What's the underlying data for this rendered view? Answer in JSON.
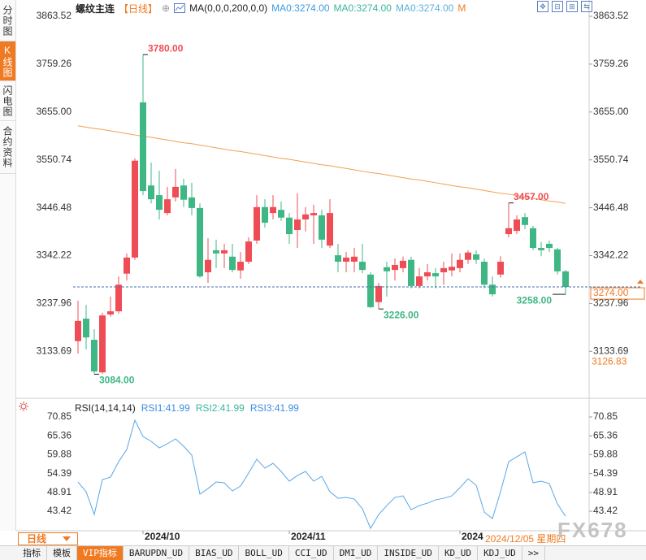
{
  "sidebar": {
    "tabs": [
      "分时图",
      "K线图",
      "闪电图",
      "合约资料"
    ],
    "active": 1
  },
  "legend": {
    "symbol": "螺纹主连",
    "period": "【日线】",
    "indicator": "MA(0,0,0,200,0,0)",
    "ma_values": [
      "MA0:3274.00",
      "MA0:3274.00",
      "MA0:3274.00"
    ],
    "more": "M"
  },
  "chart_data": [
    {
      "type": "candlestick",
      "categories": [
        null,
        null,
        null,
        null,
        null,
        null,
        null,
        null,
        "2024/10",
        null,
        null,
        null,
        null,
        null,
        null,
        null,
        null,
        null,
        null,
        null,
        null,
        null,
        null,
        null,
        null,
        null,
        "2024/11",
        null,
        null,
        null,
        null,
        null,
        null,
        null,
        null,
        null,
        null,
        null,
        null,
        null,
        null,
        null,
        null,
        null,
        null,
        null,
        null,
        "2024",
        null,
        null,
        null,
        null,
        null,
        null,
        null,
        null,
        null,
        null,
        null,
        null,
        null
      ],
      "open": [
        3156,
        3205,
        3159,
        3088,
        3214,
        3221,
        3303,
        3338,
        3676,
        3495,
        3474,
        3435,
        3469,
        3495,
        3469,
        3446,
        3306,
        3354,
        3347,
        3340,
        3310,
        3329,
        3375,
        3448,
        3435,
        3442,
        3425,
        3398,
        3421,
        3430,
        3430,
        3364,
        3343,
        3329,
        3329,
        3329,
        3301,
        3241,
        3317,
        3311,
        3315,
        3333,
        3276,
        3297,
        3304,
        3306,
        3310,
        3315,
        3333,
        3345,
        3329,
        3279,
        3301,
        3389,
        3396,
        3426,
        3402,
        3359,
        3368,
        3356,
        3308
      ],
      "high": [
        3244,
        3235,
        3182,
        3218,
        3253,
        3297,
        3347,
        3554,
        3780,
        3545,
        3527,
        3492,
        3531,
        3510,
        3501,
        3456,
        3380,
        3377,
        3368,
        3368,
        3350,
        3382,
        3474,
        3465,
        3474,
        3460,
        3435,
        3478,
        3448,
        3453,
        3442,
        3465,
        3368,
        3350,
        3359,
        3368,
        3306,
        3283,
        3329,
        3336,
        3340,
        3340,
        3315,
        3324,
        3315,
        3329,
        3347,
        3347,
        3354,
        3354,
        3336,
        3297,
        3341,
        3457,
        3430,
        3435,
        3407,
        3372,
        3375,
        3359,
        3311
      ],
      "low": [
        3129,
        3138,
        3084,
        3085,
        3209,
        3216,
        3288,
        3333,
        3474,
        3456,
        3421,
        3430,
        3460,
        3448,
        3430,
        3294,
        3283,
        3315,
        3315,
        3306,
        3292,
        3324,
        3368,
        3403,
        3421,
        3418,
        3368,
        3359,
        3395,
        3368,
        3359,
        3359,
        3306,
        3306,
        3306,
        3304,
        3228,
        3226,
        3253,
        3288,
        3306,
        3271,
        3271,
        3288,
        3271,
        3279,
        3297,
        3306,
        3324,
        3324,
        3271,
        3253,
        3294,
        3382,
        3389,
        3400,
        3354,
        3341,
        3350,
        3301,
        3258
      ],
      "close": [
        3200,
        3164,
        3090,
        3212,
        3221,
        3279,
        3338,
        3549,
        3483,
        3465,
        3442,
        3465,
        3492,
        3464,
        3446,
        3297,
        3333,
        3347,
        3354,
        3311,
        3329,
        3373,
        3448,
        3414,
        3448,
        3425,
        3389,
        3421,
        3432,
        3435,
        3377,
        3435,
        3329,
        3338,
        3340,
        3311,
        3230,
        3276,
        3308,
        3322,
        3331,
        3276,
        3297,
        3306,
        3297,
        3315,
        3318,
        3333,
        3349,
        3333,
        3279,
        3258,
        3329,
        3402,
        3421,
        3409,
        3359,
        3354,
        3359,
        3308,
        3274
      ],
      "up_color": "#ef4d56",
      "down_color": "#3fb784",
      "ma_line": {
        "color": "#f0a050",
        "values": [
          3625,
          3622,
          3619,
          3617,
          3614,
          3611,
          3608,
          3605,
          3602,
          3600,
          3597,
          3594,
          3591,
          3588,
          3586,
          3583,
          3580,
          3577,
          3574,
          3571,
          3569,
          3566,
          3563,
          3560,
          3557,
          3554,
          3552,
          3549,
          3546,
          3543,
          3540,
          3538,
          3535,
          3532,
          3529,
          3526,
          3523,
          3521,
          3518,
          3515,
          3512,
          3509,
          3507,
          3504,
          3501,
          3498,
          3495,
          3492,
          3490,
          3487,
          3484,
          3481,
          3478,
          3476,
          3473,
          3470,
          3467,
          3464,
          3461,
          3459,
          3456
        ]
      },
      "ylim": [
        3040.47,
        3884.76
      ],
      "yticks": [
        3863.52,
        3759.26,
        {
          "value": 3655,
          "label": "3655.00"
        },
        3550.74,
        3446.48,
        3342.22,
        3237.96,
        3133.69
      ],
      "extremes": [
        {
          "value": 3780,
          "label": "3780.00"
        },
        {
          "value": 3084,
          "label": "3084.00"
        },
        {
          "value": 3226,
          "label": "3226.00"
        },
        {
          "value": 3457,
          "label": "3457.00"
        },
        {
          "value": 3258,
          "label": "3258.00"
        }
      ],
      "last_price": {
        "value": 3274,
        "label": "3274.00"
      },
      "crosshair": {
        "value": 3126.83,
        "label": "3126.83",
        "date": "2024/12/05 星期四"
      }
    },
    {
      "type": "line",
      "title": "RSI(14,14,14)",
      "legend": [
        "RSI1:41.99",
        "RSI2:41.99",
        "RSI3:41.99"
      ],
      "color": "#5aa6e6",
      "values": [
        51.93,
        49.1,
        42.47,
        52.64,
        53.35,
        57.84,
        61.39,
        69.9,
        65.17,
        63.76,
        61.86,
        63.05,
        64.47,
        62.34,
        59.74,
        48.39,
        50.04,
        51.93,
        51.7,
        49.33,
        50.75,
        54.53,
        58.55,
        55.95,
        57.37,
        55.01,
        52.17,
        53.82,
        55.01,
        52.17,
        53.59,
        49.1,
        47.2,
        47.44,
        46.97,
        44.13,
        38.45,
        42.47,
        45.08,
        47.44,
        47.91,
        43.89,
        45.08,
        45.78,
        46.73,
        47.2,
        47.91,
        50.28,
        52.88,
        50.99,
        43.18,
        41.29,
        49.1,
        57.84,
        59.26,
        60.68,
        51.7,
        52.17,
        51.46,
        45.55,
        41.99
      ],
      "ylim": [
        38.0,
        73.92
      ],
      "yticks": [
        70.85,
        65.36,
        59.88,
        54.39,
        48.91,
        43.42
      ]
    }
  ],
  "bottom": {
    "period_button": "日线",
    "toolbar": [
      "指标",
      "模板",
      "VIP指标",
      "BARUPDN_UD",
      "BIAS_UD",
      "BOLL_UD",
      "CCI_UD",
      "DMI_UD",
      "INSIDE_UD",
      "KD_UD",
      "KDJ_UD",
      ">>"
    ],
    "active": 2
  },
  "watermark": "FX678"
}
